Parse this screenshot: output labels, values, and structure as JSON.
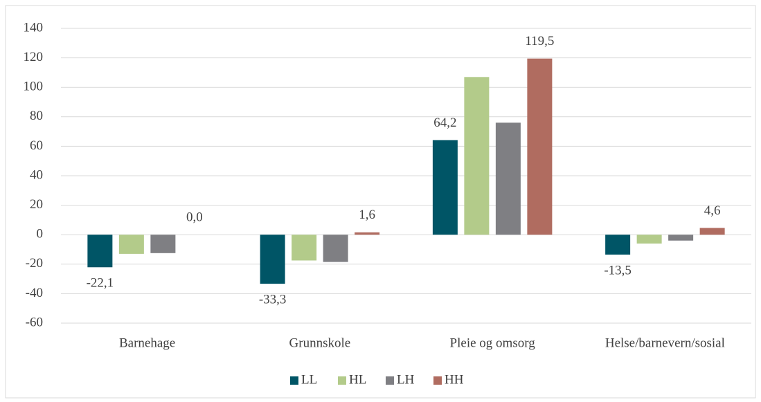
{
  "chart_data": {
    "type": "bar",
    "categories": [
      "Barnehage",
      "Grunnskole",
      "Pleie og omsorg",
      "Helse/barnevern/sosial"
    ],
    "series": [
      {
        "name": "LL",
        "color": "#005566",
        "values": [
          -22.1,
          -33.3,
          64.2,
          -13.5
        ],
        "value_labels": [
          "-22,1",
          "-33,3",
          "64,2",
          "-13,5"
        ]
      },
      {
        "name": "HL",
        "color": "#b3cb8a",
        "values": [
          -13,
          -17.5,
          107,
          -6
        ]
      },
      {
        "name": "LH",
        "color": "#7f7f83",
        "values": [
          -12.5,
          -18.5,
          76,
          -4
        ]
      },
      {
        "name": "HH",
        "color": "#b06c60",
        "values": [
          0.0,
          1.6,
          119.5,
          4.6
        ],
        "value_labels": [
          "0,0",
          "1,6",
          "119,5",
          "4,6"
        ]
      }
    ],
    "ylim": [
      -60,
      140
    ],
    "yticks": [
      -60,
      -40,
      -20,
      0,
      20,
      40,
      60,
      80,
      100,
      120,
      140
    ],
    "grid": true,
    "legend": "bottom"
  }
}
